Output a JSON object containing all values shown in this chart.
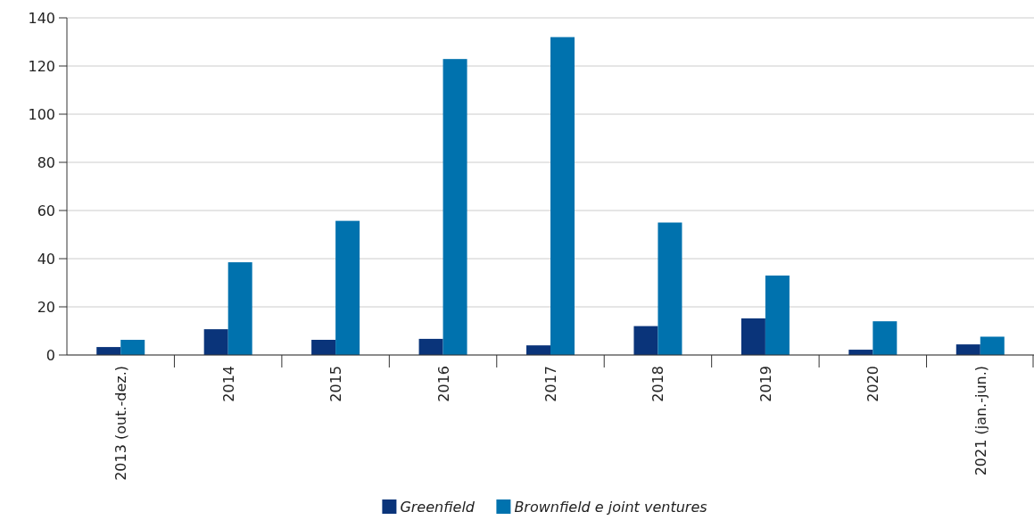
{
  "chart_data": {
    "type": "bar",
    "categories": [
      "2013 (out.-dez.)",
      "2014",
      "2015",
      "2016",
      "2017",
      "2018",
      "2019",
      "2020",
      "2021 (jan.-jun.)"
    ],
    "series": [
      {
        "name": "Greenfield",
        "color": "#0a347a",
        "values": [
          3.3,
          10.7,
          6.3,
          6.7,
          4,
          12,
          15.2,
          2.2,
          4.4
        ]
      },
      {
        "name": "Brownfield e joint ventures",
        "color": "#0072ae",
        "values": [
          6.3,
          38.5,
          55.7,
          122.9,
          132,
          55,
          33,
          14,
          7.6
        ]
      }
    ],
    "ylim": [
      0,
      140
    ],
    "yticks": [
      0,
      20,
      40,
      60,
      80,
      100,
      120,
      140
    ],
    "grid": "y",
    "legend": "bottom"
  }
}
